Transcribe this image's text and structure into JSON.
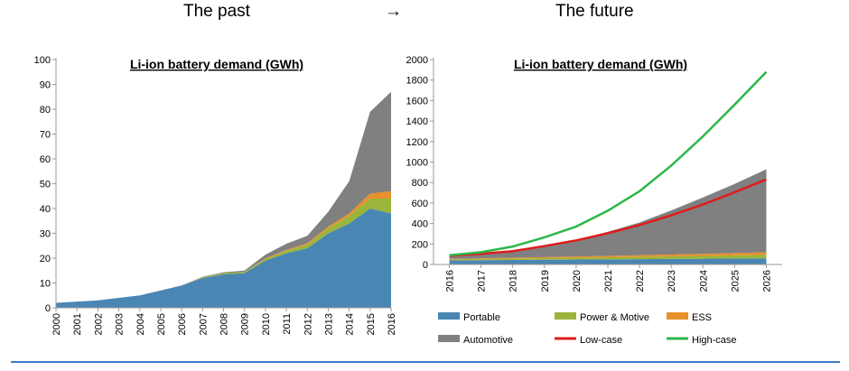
{
  "header": {
    "left": "The past",
    "arrow": "→",
    "right": "The future"
  },
  "colors": {
    "portable": "#4a86b4",
    "power_motive": "#9ab53a",
    "ess": "#e8902c",
    "automotive": "#808080",
    "low_case": "#e01c1c",
    "high_case": "#2cb84a",
    "rule": "#3d7cc9"
  },
  "chart_data": [
    {
      "type": "area",
      "title": "Li-ion battery demand (GWh)",
      "stacked": true,
      "x": [
        "2000",
        "2001",
        "2002",
        "2003",
        "2004",
        "2005",
        "2006",
        "2007",
        "2008",
        "2009",
        "2010",
        "2011",
        "2012",
        "2013",
        "2014",
        "2015",
        "2016"
      ],
      "ylim": [
        0,
        100
      ],
      "yticks": [
        0,
        10,
        20,
        30,
        40,
        50,
        60,
        70,
        80,
        90,
        100
      ],
      "series": [
        {
          "name": "Portable",
          "values": [
            2,
            2.5,
            3,
            4,
            5,
            7,
            9,
            12,
            13.5,
            14,
            19,
            22,
            24,
            30,
            34,
            40,
            38
          ]
        },
        {
          "name": "Power & Motive",
          "values": [
            0,
            0,
            0,
            0,
            0,
            0,
            0,
            0.3,
            0.5,
            0.5,
            0.7,
            1,
            1.5,
            2,
            3,
            4,
            6
          ]
        },
        {
          "name": "ESS",
          "values": [
            0,
            0,
            0,
            0,
            0,
            0,
            0,
            0,
            0,
            0,
            0.2,
            0.3,
            0.5,
            0.7,
            1,
            2,
            3
          ]
        },
        {
          "name": "Automotive",
          "values": [
            0,
            0,
            0,
            0,
            0,
            0,
            0,
            0.2,
            0.3,
            0.5,
            1.5,
            2.5,
            3,
            6,
            13,
            33,
            40
          ]
        }
      ]
    },
    {
      "type": "area",
      "title": "Li-ion battery demand (GWh)",
      "stacked": true,
      "x": [
        "2016",
        "2017",
        "2018",
        "2019",
        "2020",
        "2021",
        "2022",
        "2023",
        "2024",
        "2025",
        "2026"
      ],
      "ylim": [
        0,
        2000
      ],
      "yticks": [
        0,
        200,
        400,
        600,
        800,
        1000,
        1200,
        1400,
        1600,
        1800,
        2000
      ],
      "series": [
        {
          "name": "Portable",
          "values": [
            40,
            42,
            44,
            46,
            48,
            50,
            52,
            54,
            56,
            58,
            60
          ]
        },
        {
          "name": "Power & Motive",
          "values": [
            10,
            12,
            14,
            16,
            18,
            20,
            22,
            25,
            28,
            31,
            34
          ]
        },
        {
          "name": "ESS",
          "values": [
            5,
            6,
            8,
            10,
            12,
            14,
            16,
            18,
            20,
            22,
            25
          ]
        },
        {
          "name": "Automotive",
          "values": [
            30,
            40,
            65,
            110,
            160,
            235,
            320,
            430,
            550,
            675,
            810
          ]
        }
      ],
      "lines": [
        {
          "name": "Low-case",
          "values": [
            85,
            105,
            130,
            180,
            235,
            305,
            385,
            480,
            585,
            705,
            830
          ]
        },
        {
          "name": "High-case",
          "values": [
            90,
            120,
            175,
            265,
            370,
            525,
            715,
            965,
            1250,
            1560,
            1880
          ]
        }
      ],
      "legend": [
        "Portable",
        "Power & Motive",
        "ESS",
        "Automotive",
        "Low-case",
        "High-case"
      ]
    }
  ]
}
